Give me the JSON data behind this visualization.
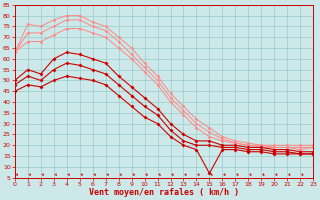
{
  "background_color": "#cce8e8",
  "grid_color": "#99cccc",
  "line_color_dark": "#cc0000",
  "line_color_light": "#ff8888",
  "xlabel": "Vent moyen/en rafales ( km/h )",
  "xlabel_color": "#cc0000",
  "xlabel_fontsize": 6,
  "ylim": [
    5,
    85
  ],
  "xlim": [
    0,
    23
  ],
  "yticks": [
    5,
    10,
    15,
    20,
    25,
    30,
    35,
    40,
    45,
    50,
    55,
    60,
    65,
    70,
    75,
    80,
    85
  ],
  "xticks": [
    0,
    1,
    2,
    3,
    4,
    5,
    6,
    7,
    8,
    9,
    10,
    11,
    12,
    13,
    14,
    15,
    16,
    17,
    18,
    19,
    20,
    21,
    22,
    23
  ],
  "lines_dark": [
    {
      "x": [
        0,
        1,
        2,
        3,
        4,
        5,
        6,
        7,
        8,
        9,
        10,
        11,
        12,
        13,
        14,
        15,
        16,
        17,
        18,
        19,
        20,
        21,
        22,
        23
      ],
      "y": [
        50,
        55,
        53,
        60,
        63,
        62,
        60,
        58,
        52,
        47,
        42,
        37,
        30,
        25,
        22,
        22,
        20,
        20,
        19,
        19,
        18,
        18,
        17,
        17
      ]
    },
    {
      "x": [
        0,
        1,
        2,
        3,
        4,
        5,
        6,
        7,
        8,
        9,
        10,
        11,
        12,
        13,
        14,
        15,
        16,
        17,
        18,
        19,
        20,
        21,
        22,
        23
      ],
      "y": [
        48,
        52,
        50,
        55,
        58,
        57,
        55,
        53,
        48,
        43,
        38,
        34,
        27,
        22,
        20,
        20,
        19,
        19,
        18,
        18,
        17,
        17,
        16,
        16
      ]
    },
    {
      "x": [
        0,
        1,
        2,
        3,
        4,
        5,
        6,
        7,
        8,
        9,
        10,
        11,
        12,
        13,
        14,
        15,
        16,
        17,
        18,
        19,
        20,
        21,
        22,
        23
      ],
      "y": [
        45,
        48,
        47,
        50,
        52,
        51,
        50,
        48,
        43,
        38,
        33,
        30,
        24,
        20,
        18,
        7,
        18,
        18,
        17,
        17,
        16,
        16,
        16,
        16
      ]
    }
  ],
  "lines_light": [
    {
      "x": [
        0,
        1,
        2,
        3,
        4,
        5,
        6,
        7,
        8,
        9,
        10,
        11,
        12,
        13,
        14,
        15,
        16,
        17,
        18,
        19,
        20,
        21,
        22,
        23
      ],
      "y": [
        63,
        76,
        75,
        78,
        80,
        80,
        77,
        75,
        70,
        65,
        58,
        52,
        44,
        38,
        32,
        28,
        24,
        22,
        21,
        20,
        20,
        20,
        20,
        20
      ]
    },
    {
      "x": [
        0,
        1,
        2,
        3,
        4,
        5,
        6,
        7,
        8,
        9,
        10,
        11,
        12,
        13,
        14,
        15,
        16,
        17,
        18,
        19,
        20,
        21,
        22,
        23
      ],
      "y": [
        63,
        72,
        72,
        75,
        78,
        78,
        75,
        73,
        68,
        62,
        56,
        50,
        42,
        36,
        30,
        26,
        23,
        21,
        20,
        20,
        19,
        19,
        19,
        19
      ]
    },
    {
      "x": [
        0,
        1,
        2,
        3,
        4,
        5,
        6,
        7,
        8,
        9,
        10,
        11,
        12,
        13,
        14,
        15,
        16,
        17,
        18,
        19,
        20,
        21,
        22,
        23
      ],
      "y": [
        63,
        68,
        68,
        71,
        74,
        74,
        72,
        70,
        65,
        60,
        54,
        48,
        40,
        34,
        28,
        24,
        22,
        21,
        20,
        19,
        19,
        19,
        18,
        19
      ]
    }
  ],
  "arrow_color": "#cc0000",
  "tick_fontsize": 4.5
}
